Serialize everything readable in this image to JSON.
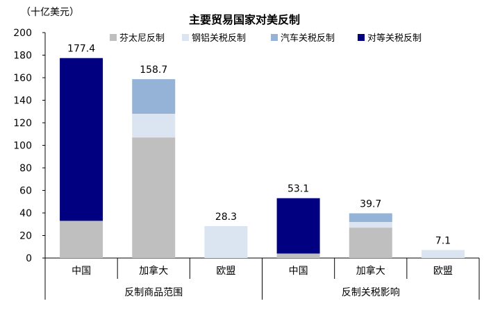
{
  "chart_data": {
    "type": "bar",
    "stacked": true,
    "title": "主要贸易国家对美反制",
    "unit_label": "（十亿美元）",
    "ylim": [
      0,
      200
    ],
    "yticks": [
      0,
      20,
      40,
      60,
      80,
      100,
      120,
      140,
      160,
      180,
      200
    ],
    "legend_position": "top",
    "groups": [
      {
        "label": "反制商品范围",
        "categories": [
          "中国",
          "加拿大",
          "欧盟"
        ]
      },
      {
        "label": "反制关税影响",
        "categories": [
          "中国",
          "加拿大",
          "欧盟"
        ]
      }
    ],
    "categories": [
      "中国",
      "加拿大",
      "欧盟",
      "中国",
      "加拿大",
      "欧盟"
    ],
    "series": [
      {
        "name": "芬太尼反制",
        "color": "#bfbfbf",
        "values": [
          33,
          107,
          0,
          4,
          27,
          0
        ]
      },
      {
        "name": "钢铝关税反制",
        "color": "#dbe5f1",
        "values": [
          0,
          21,
          28.3,
          0,
          5,
          7.1
        ]
      },
      {
        "name": "汽车关税反制",
        "color": "#95b3d7",
        "values": [
          0,
          30.7,
          0,
          0,
          7.7,
          0
        ]
      },
      {
        "name": "对等关税反制",
        "color": "#000080",
        "values": [
          144.4,
          0,
          0,
          49.1,
          0,
          0
        ]
      }
    ],
    "totals": [
      "177.4",
      "158.7",
      "28.3",
      "53.1",
      "39.7",
      "7.1"
    ]
  }
}
